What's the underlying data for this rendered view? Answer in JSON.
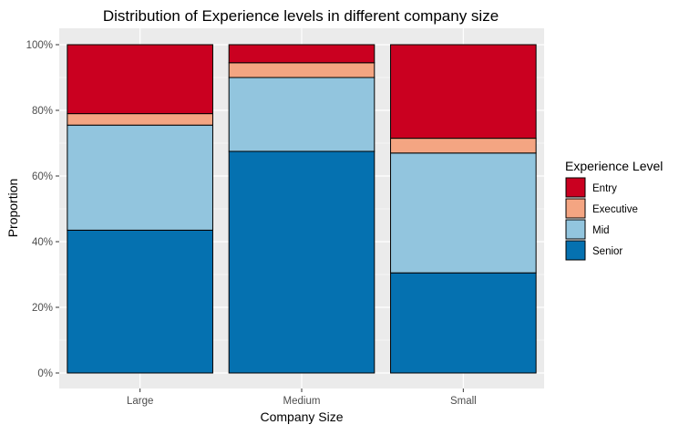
{
  "chart_data": {
    "type": "bar",
    "stacked": true,
    "title": "Distribution of Experience levels in different company size",
    "xlabel": "Company Size",
    "ylabel": "Proportion",
    "categories": [
      "Large",
      "Medium",
      "Small"
    ],
    "ylim": [
      0,
      1
    ],
    "y_ticks": [
      0,
      0.2,
      0.4,
      0.6,
      0.8,
      1.0
    ],
    "y_tick_labels": [
      "0%",
      "20%",
      "40%",
      "60%",
      "80%",
      "100%"
    ],
    "grid": true,
    "legend": {
      "title": "Experience Level",
      "position": "right"
    },
    "series": [
      {
        "name": "Senior",
        "color": "#0571b0",
        "values": [
          0.435,
          0.675,
          0.305
        ]
      },
      {
        "name": "Mid",
        "color": "#92c5de",
        "values": [
          0.32,
          0.225,
          0.365
        ]
      },
      {
        "name": "Executive",
        "color": "#f4a582",
        "values": [
          0.035,
          0.045,
          0.045
        ]
      },
      {
        "name": "Entry",
        "color": "#ca0020",
        "values": [
          0.21,
          0.055,
          0.285
        ]
      }
    ],
    "legend_order": [
      "Entry",
      "Executive",
      "Mid",
      "Senior"
    ]
  }
}
